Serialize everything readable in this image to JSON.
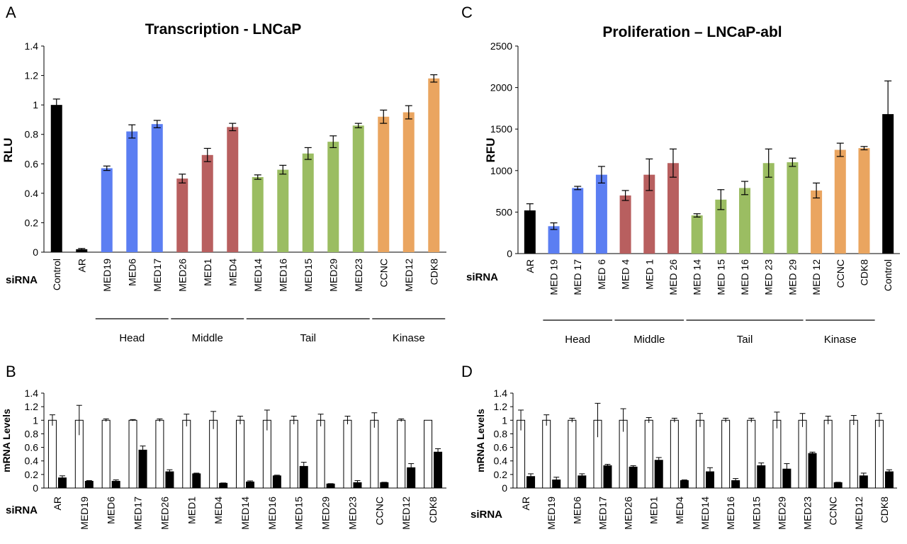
{
  "colors": {
    "black": "#000000",
    "head": "#5b7ef2",
    "middle": "#b85f5f",
    "tail": "#9bbd62",
    "kinase": "#eaa560",
    "white": "#ffffff"
  },
  "panel_A": {
    "letter": "A",
    "sirna_label": "siRNA",
    "chart_data": {
      "type": "bar",
      "title": "Transcription - LNCaP",
      "ylabel": "RLU",
      "ylim": [
        0,
        1.4
      ],
      "yticks": [
        "0",
        "0.2",
        "0.4",
        "0.6",
        "0.8",
        "1",
        "1.2",
        "1.4"
      ],
      "categories": [
        "Control",
        "AR",
        "MED19",
        "MED6",
        "MED17",
        "MED26",
        "MED1",
        "MED4",
        "MED14",
        "MED16",
        "MED15",
        "MED29",
        "MED23",
        "CCNC",
        "MED12",
        "CDK8"
      ],
      "values": [
        1.0,
        0.02,
        0.57,
        0.82,
        0.87,
        0.5,
        0.66,
        0.85,
        0.51,
        0.56,
        0.67,
        0.75,
        0.86,
        0.92,
        0.95,
        1.18
      ],
      "errors": [
        0.04,
        0.005,
        0.015,
        0.045,
        0.025,
        0.03,
        0.045,
        0.025,
        0.015,
        0.03,
        0.04,
        0.04,
        0.015,
        0.045,
        0.045,
        0.025
      ],
      "bar_colors": [
        "black",
        "black",
        "head",
        "head",
        "head",
        "middle",
        "middle",
        "middle",
        "tail",
        "tail",
        "tail",
        "tail",
        "tail",
        "kinase",
        "kinase",
        "kinase"
      ],
      "groups": [
        {
          "label": "Head",
          "from": 2,
          "to": 4
        },
        {
          "label": "Middle",
          "from": 5,
          "to": 7
        },
        {
          "label": "Tail",
          "from": 8,
          "to": 12
        },
        {
          "label": "Kinase",
          "from": 13,
          "to": 15
        }
      ]
    }
  },
  "panel_C": {
    "letter": "C",
    "sirna_label": "siRNA",
    "chart_data": {
      "type": "bar",
      "title": "Proliferation – LNCaP-abl",
      "ylabel": "RFU",
      "ylim": [
        0,
        2500
      ],
      "yticks": [
        "0",
        "500",
        "1000",
        "1500",
        "2000",
        "2500"
      ],
      "categories": [
        "AR",
        "MED 19",
        "MED 17",
        "MED 6",
        "MED 4",
        "MED 1",
        "MED 26",
        "MED 14",
        "MED 15",
        "MED 16",
        "MED 23",
        "MED 29",
        "MED 12",
        "CCNC",
        "CDK8",
        "Control"
      ],
      "values": [
        520,
        330,
        790,
        950,
        700,
        950,
        1090,
        460,
        650,
        790,
        1090,
        1100,
        760,
        1250,
        1270,
        1680
      ],
      "errors": [
        80,
        40,
        20,
        100,
        60,
        190,
        170,
        20,
        120,
        80,
        170,
        50,
        90,
        80,
        20,
        400
      ],
      "bar_colors": [
        "black",
        "head",
        "head",
        "head",
        "middle",
        "middle",
        "middle",
        "tail",
        "tail",
        "tail",
        "tail",
        "tail",
        "kinase",
        "kinase",
        "kinase",
        "black"
      ],
      "groups": [
        {
          "label": "Head",
          "from": 1,
          "to": 3
        },
        {
          "label": "Middle",
          "from": 4,
          "to": 6
        },
        {
          "label": "Tail",
          "from": 7,
          "to": 11
        },
        {
          "label": "Kinase",
          "from": 12,
          "to": 14
        }
      ]
    }
  },
  "panel_B": {
    "letter": "B",
    "sirna_label": "siRNA",
    "chart_data": {
      "type": "bar",
      "ylabel": "mRNA Levels",
      "ylim": [
        0,
        1.4
      ],
      "yticks": [
        "0",
        "0.2",
        "0.4",
        "0.6",
        "0.8",
        "1",
        "1.2",
        "1.4"
      ],
      "categories": [
        "AR",
        "MED19",
        "MED6",
        "MED17",
        "MED26",
        "MED1",
        "MED4",
        "MED14",
        "MED16",
        "MED15",
        "MED29",
        "MED23",
        "CCNC",
        "MED12",
        "CDK8"
      ],
      "series": [
        {
          "values": [
            1,
            1,
            1,
            1,
            1,
            1,
            1,
            1,
            1,
            1,
            1,
            1,
            1,
            1,
            1
          ],
          "errors": [
            0.08,
            0.22,
            0.02,
            0.01,
            0.02,
            0.09,
            0.13,
            0.06,
            0.15,
            0.06,
            0.09,
            0.06,
            0.11,
            0.02,
            0.0
          ],
          "color": "white"
        },
        {
          "values": [
            0.15,
            0.1,
            0.1,
            0.56,
            0.24,
            0.21,
            0.07,
            0.09,
            0.18,
            0.32,
            0.06,
            0.08,
            0.08,
            0.3,
            0.53
          ],
          "errors": [
            0.03,
            0.01,
            0.02,
            0.06,
            0.03,
            0.01,
            0.005,
            0.015,
            0.01,
            0.06,
            0.005,
            0.03,
            0.005,
            0.06,
            0.05
          ],
          "color": "black"
        }
      ]
    }
  },
  "panel_D": {
    "letter": "D",
    "sirna_label": "siRNA",
    "chart_data": {
      "type": "bar",
      "ylabel": "mRNA Levels",
      "ylim": [
        0,
        1.4
      ],
      "yticks": [
        "0",
        "0.2",
        "0.4",
        "0.6",
        "0.8",
        "1",
        "1.2",
        "1.4"
      ],
      "categories": [
        "AR",
        "MED19",
        "MED6",
        "MED17",
        "MED26",
        "MED1",
        "MED4",
        "MED14",
        "MED16",
        "MED15",
        "MED29",
        "MED23",
        "CCNC",
        "MED12",
        "CDK8"
      ],
      "series": [
        {
          "values": [
            1,
            1,
            1,
            1,
            1,
            1,
            1,
            1,
            1,
            1,
            1,
            1,
            1,
            1,
            1
          ],
          "errors": [
            0.15,
            0.08,
            0.03,
            0.25,
            0.17,
            0.04,
            0.03,
            0.1,
            0.03,
            0.03,
            0.12,
            0.1,
            0.06,
            0.07,
            0.1
          ],
          "color": "white"
        },
        {
          "values": [
            0.17,
            0.12,
            0.18,
            0.33,
            0.31,
            0.41,
            0.11,
            0.24,
            0.11,
            0.33,
            0.28,
            0.51,
            0.08,
            0.18,
            0.24
          ],
          "errors": [
            0.04,
            0.04,
            0.03,
            0.02,
            0.02,
            0.04,
            0.01,
            0.06,
            0.03,
            0.04,
            0.08,
            0.02,
            0.005,
            0.04,
            0.03
          ],
          "color": "black"
        }
      ]
    }
  }
}
